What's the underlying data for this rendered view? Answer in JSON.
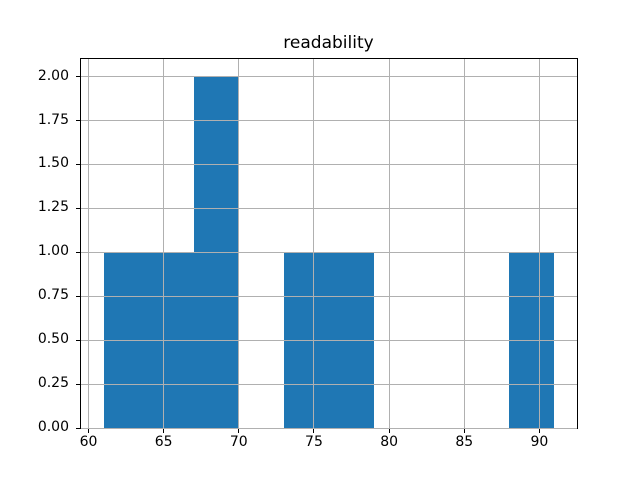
{
  "chart_data": {
    "type": "bar",
    "subtype": "histogram",
    "title": "readability",
    "xlabel": "",
    "ylabel": "",
    "bin_edges": [
      61,
      64,
      67,
      70,
      73,
      76,
      79,
      82,
      85,
      88,
      91
    ],
    "counts": [
      1,
      1,
      2,
      0,
      1,
      1,
      0,
      0,
      0,
      1
    ],
    "xlim": [
      59.5,
      92.5
    ],
    "ylim": [
      0,
      2.1
    ],
    "xticks": [
      {
        "value": 60,
        "label": "60"
      },
      {
        "value": 65,
        "label": "65"
      },
      {
        "value": 70,
        "label": "70"
      },
      {
        "value": 75,
        "label": "75"
      },
      {
        "value": 80,
        "label": "80"
      },
      {
        "value": 85,
        "label": "85"
      },
      {
        "value": 90,
        "label": "90"
      }
    ],
    "yticks": [
      {
        "value": 0.0,
        "label": "0.00"
      },
      {
        "value": 0.25,
        "label": "0.25"
      },
      {
        "value": 0.5,
        "label": "0.50"
      },
      {
        "value": 0.75,
        "label": "0.75"
      },
      {
        "value": 1.0,
        "label": "1.00"
      },
      {
        "value": 1.25,
        "label": "1.25"
      },
      {
        "value": 1.5,
        "label": "1.50"
      },
      {
        "value": 1.75,
        "label": "1.75"
      },
      {
        "value": 2.0,
        "label": "2.00"
      }
    ],
    "grid": true,
    "legend": null,
    "colors": {
      "bar": "#1f77b4",
      "grid": "#b0b0b0",
      "spine": "#000000",
      "background": "#ffffff",
      "text": "#000000"
    }
  }
}
